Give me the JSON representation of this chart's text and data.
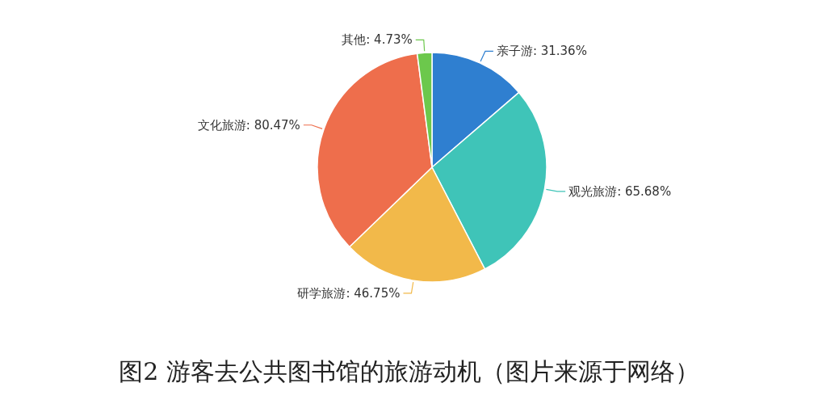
{
  "chart_data": {
    "type": "pie",
    "title": "图2 游客去公共图书馆的旅游动机（图片来源于网络）",
    "categories": [
      "亲子游",
      "观光旅游",
      "研学旅游",
      "文化旅游",
      "其他"
    ],
    "values": [
      31.36,
      65.68,
      46.75,
      80.47,
      4.73
    ],
    "value_labels": [
      ": 31.36%",
      ": 65.68%",
      ": 46.75%",
      ": 80.47%",
      ": 4.73%"
    ],
    "colors": [
      "#2f7fd0",
      "#3fc4b8",
      "#f2b94a",
      "#ee6e4c",
      "#6cc84c"
    ]
  }
}
